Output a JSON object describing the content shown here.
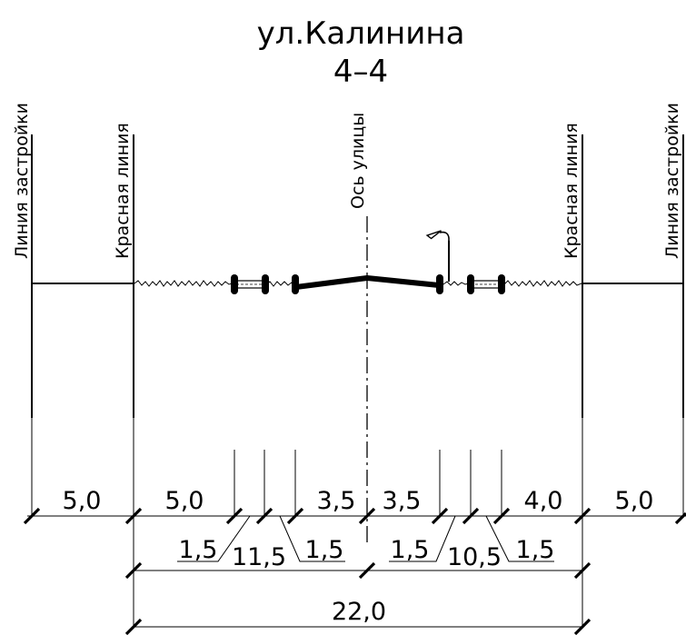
{
  "title": {
    "street": "ул.Калинина",
    "section": "4–4"
  },
  "vertical_labels": {
    "building_line_left": "Линия застройки",
    "red_line_left": "Красная линия",
    "street_axis": "Ось улицы",
    "red_line_right": "Красная линия",
    "building_line_right": "Линия застройки"
  },
  "dimensions": {
    "left_setback": "5,0",
    "left_sidewalk": "5,0",
    "left_carriageway": "3,5",
    "right_carriageway": "3,5",
    "right_sidewalk": "4,0",
    "right_setback": "5,0",
    "left_strip_1": "1,5",
    "left_strip_2": "1,5",
    "left_half_total": "11,5",
    "right_strip_1": "1,5",
    "right_strip_2": "1,5",
    "right_half_total": "10,5",
    "red_lines_total": "22,0"
  }
}
